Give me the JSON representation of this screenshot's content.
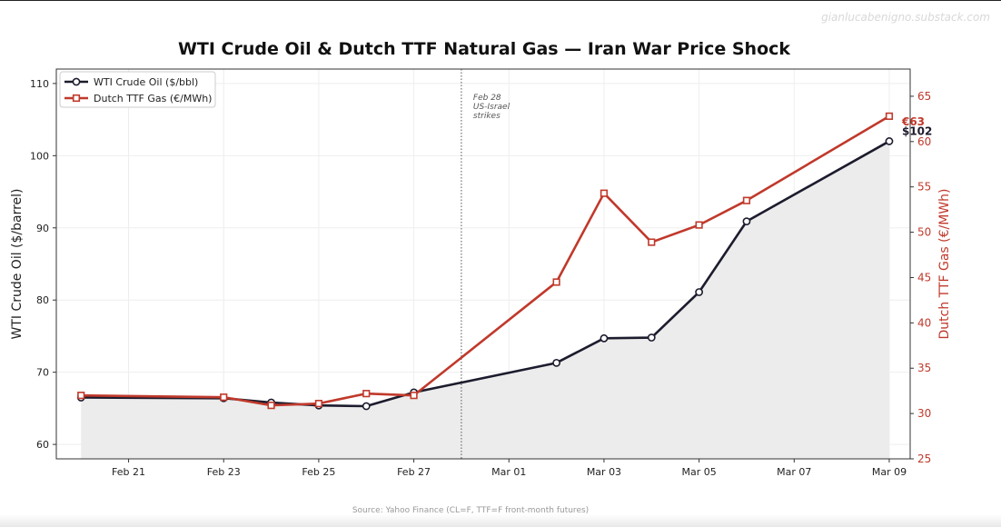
{
  "credit": "gianlucabenigno.substack.com",
  "source": "Source: Yahoo Finance (CL=F, TTF=F front-month futures)",
  "chart_data": {
    "type": "line",
    "title": "WTI Crude Oil & Dutch TTF Natural Gas — Iran War Price Shock",
    "x": [
      "Feb 20",
      "Feb 23",
      "Feb 24",
      "Feb 25",
      "Feb 26",
      "Feb 27",
      "Mar 02",
      "Mar 03",
      "Mar 04",
      "Mar 05",
      "Mar 06",
      "Mar 09"
    ],
    "x_tick_labels": [
      "Feb 21",
      "Feb 23",
      "Feb 25",
      "Feb 27",
      "Mar 01",
      "Mar 03",
      "Mar 05",
      "Mar 07",
      "Mar 09"
    ],
    "ylabel": "WTI Crude Oil ($/barrel)",
    "ylim": [
      58,
      112
    ],
    "y_ticks": [
      60,
      70,
      80,
      90,
      100,
      110
    ],
    "y2label": "Dutch TTF Gas (€/MWh)",
    "y2lim": [
      25,
      68
    ],
    "y2_ticks": [
      25,
      30,
      35,
      40,
      45,
      50,
      55,
      60,
      65
    ],
    "grid": true,
    "legend": "top-left",
    "series": [
      {
        "name": "WTI Crude Oil ($/bbl)",
        "axis": "left",
        "color": "#1c1c2e",
        "marker": "circle",
        "fill": "#ececec",
        "values": [
          66.5,
          66.4,
          65.8,
          65.4,
          65.3,
          67.2,
          71.3,
          74.7,
          74.8,
          81.1,
          90.9,
          102.0
        ],
        "end_label": "$102"
      },
      {
        "name": "Dutch TTF Gas (€/MWh)",
        "axis": "right",
        "color": "#c0392b",
        "marker": "square",
        "values": [
          32.0,
          31.8,
          30.9,
          31.1,
          32.2,
          32.0,
          44.5,
          54.3,
          48.9,
          50.8,
          53.5,
          62.8
        ],
        "end_label": "€63"
      }
    ],
    "annotations": [
      {
        "x": "Feb 28",
        "style": "dotted-vline",
        "lines": [
          "Feb 28",
          "US-Israel",
          "strikes"
        ]
      }
    ]
  }
}
